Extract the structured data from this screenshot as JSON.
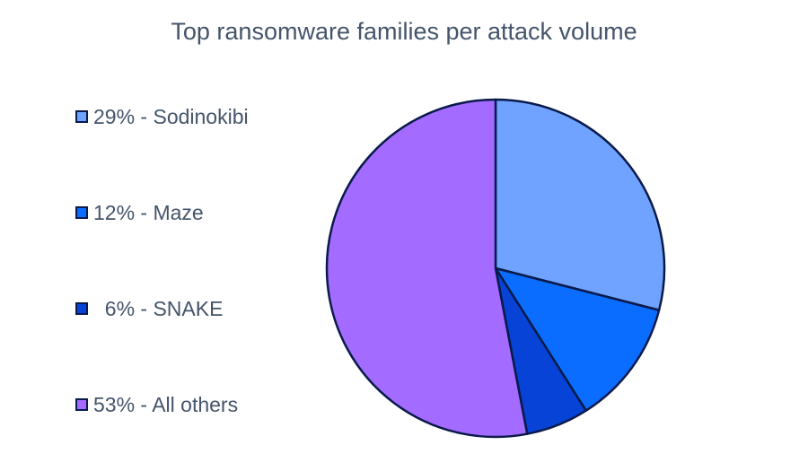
{
  "chart_data": {
    "type": "pie",
    "title": "Top ransomware families per attack volume",
    "slices": [
      {
        "label": "29% - Sodinokibi",
        "value": 29,
        "color": "#6fa3ff"
      },
      {
        "label": "12% - Maze",
        "value": 12,
        "color": "#0a6dff"
      },
      {
        "label": "  6% - SNAKE",
        "value": 6,
        "color": "#0643d6"
      },
      {
        "label": "53% - All others",
        "value": 53,
        "color": "#a36bff"
      }
    ],
    "legend_position": "left",
    "slice_outline_color": "#0a1a4a"
  }
}
